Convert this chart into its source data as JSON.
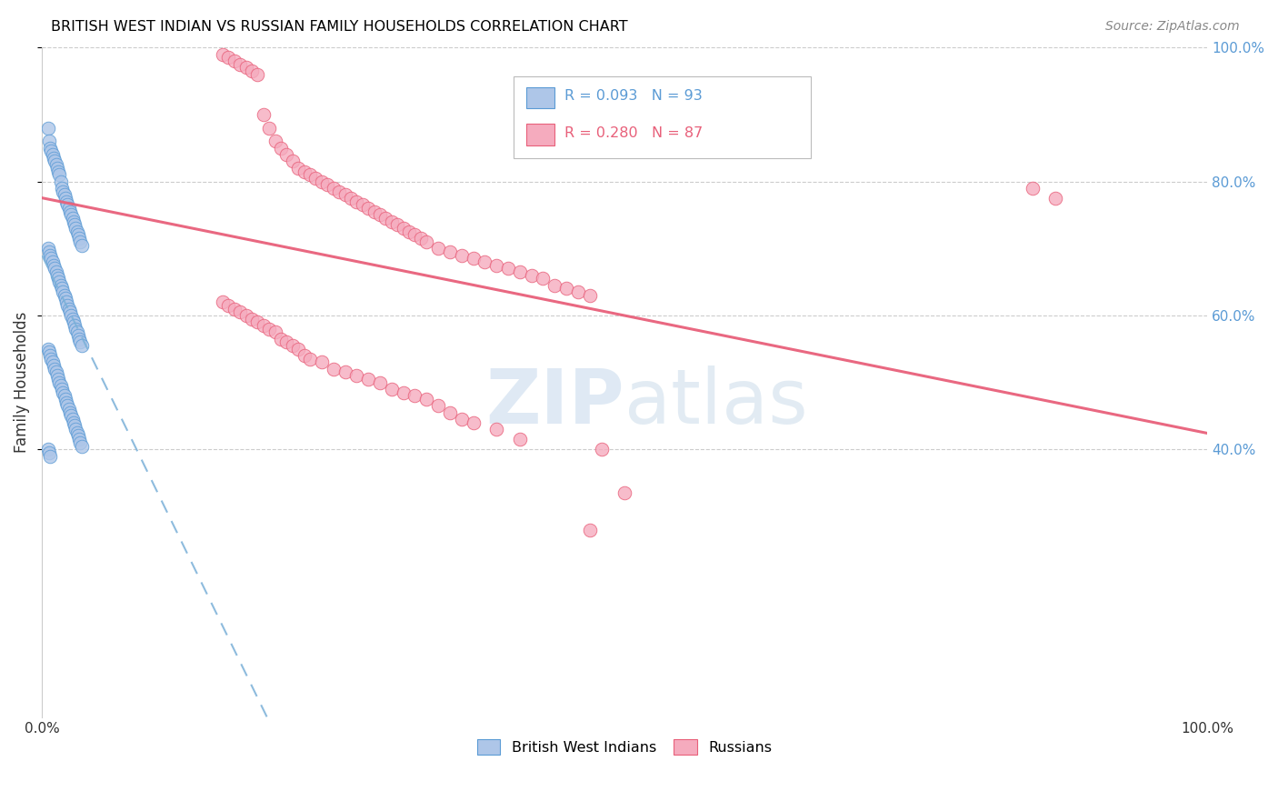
{
  "title": "BRITISH WEST INDIAN VS RUSSIAN FAMILY HOUSEHOLDS CORRELATION CHART",
  "source": "Source: ZipAtlas.com",
  "ylabel": "Family Households",
  "blue_R": 0.093,
  "blue_N": 93,
  "pink_R": 0.28,
  "pink_N": 87,
  "blue_color": "#aec6e8",
  "pink_color": "#f5abbe",
  "blue_edge_color": "#5b9bd5",
  "pink_edge_color": "#e8607a",
  "blue_line_color": "#7ab0d8",
  "pink_line_color": "#e8607a",
  "legend_label_blue": "British West Indians",
  "legend_label_pink": "Russians",
  "grid_color": "#cccccc",
  "right_tick_color": "#5b9bd5",
  "blue_x": [
    0.005,
    0.006,
    0.007,
    0.008,
    0.009,
    0.01,
    0.011,
    0.012,
    0.013,
    0.014,
    0.015,
    0.016,
    0.017,
    0.018,
    0.019,
    0.02,
    0.021,
    0.022,
    0.023,
    0.024,
    0.025,
    0.026,
    0.027,
    0.028,
    0.029,
    0.03,
    0.031,
    0.032,
    0.033,
    0.034,
    0.005,
    0.006,
    0.007,
    0.008,
    0.009,
    0.01,
    0.011,
    0.012,
    0.013,
    0.014,
    0.015,
    0.016,
    0.017,
    0.018,
    0.019,
    0.02,
    0.021,
    0.022,
    0.023,
    0.024,
    0.025,
    0.026,
    0.027,
    0.028,
    0.029,
    0.03,
    0.031,
    0.032,
    0.033,
    0.034,
    0.005,
    0.006,
    0.007,
    0.008,
    0.009,
    0.01,
    0.011,
    0.012,
    0.013,
    0.014,
    0.015,
    0.016,
    0.017,
    0.018,
    0.019,
    0.02,
    0.021,
    0.022,
    0.023,
    0.024,
    0.025,
    0.026,
    0.027,
    0.028,
    0.029,
    0.03,
    0.031,
    0.032,
    0.033,
    0.034,
    0.005,
    0.006,
    0.007
  ],
  "blue_y": [
    0.88,
    0.86,
    0.85,
    0.845,
    0.84,
    0.835,
    0.83,
    0.825,
    0.82,
    0.815,
    0.81,
    0.8,
    0.79,
    0.785,
    0.78,
    0.775,
    0.77,
    0.765,
    0.76,
    0.755,
    0.75,
    0.745,
    0.74,
    0.735,
    0.73,
    0.725,
    0.72,
    0.715,
    0.71,
    0.705,
    0.7,
    0.695,
    0.69,
    0.685,
    0.68,
    0.675,
    0.67,
    0.665,
    0.66,
    0.655,
    0.65,
    0.645,
    0.64,
    0.635,
    0.63,
    0.625,
    0.62,
    0.615,
    0.61,
    0.605,
    0.6,
    0.595,
    0.59,
    0.585,
    0.58,
    0.575,
    0.57,
    0.565,
    0.56,
    0.555,
    0.55,
    0.545,
    0.54,
    0.535,
    0.53,
    0.525,
    0.52,
    0.515,
    0.51,
    0.505,
    0.5,
    0.495,
    0.49,
    0.485,
    0.48,
    0.475,
    0.47,
    0.465,
    0.46,
    0.455,
    0.45,
    0.445,
    0.44,
    0.435,
    0.43,
    0.425,
    0.42,
    0.415,
    0.41,
    0.405,
    0.4,
    0.395,
    0.39
  ],
  "pink_x": [
    0.155,
    0.16,
    0.165,
    0.17,
    0.175,
    0.18,
    0.185,
    0.19,
    0.195,
    0.2,
    0.205,
    0.21,
    0.215,
    0.22,
    0.225,
    0.23,
    0.235,
    0.24,
    0.245,
    0.25,
    0.255,
    0.26,
    0.265,
    0.27,
    0.275,
    0.28,
    0.285,
    0.29,
    0.295,
    0.3,
    0.305,
    0.31,
    0.315,
    0.32,
    0.325,
    0.33,
    0.34,
    0.35,
    0.36,
    0.37,
    0.38,
    0.39,
    0.4,
    0.41,
    0.42,
    0.43,
    0.44,
    0.45,
    0.46,
    0.47,
    0.155,
    0.16,
    0.165,
    0.17,
    0.175,
    0.18,
    0.185,
    0.19,
    0.195,
    0.2,
    0.205,
    0.21,
    0.215,
    0.22,
    0.225,
    0.23,
    0.24,
    0.25,
    0.26,
    0.27,
    0.28,
    0.29,
    0.3,
    0.31,
    0.32,
    0.33,
    0.34,
    0.35,
    0.36,
    0.37,
    0.39,
    0.41,
    0.85,
    0.87,
    0.48,
    0.5,
    0.47
  ],
  "pink_y": [
    0.99,
    0.985,
    0.98,
    0.975,
    0.97,
    0.965,
    0.96,
    0.9,
    0.88,
    0.86,
    0.85,
    0.84,
    0.83,
    0.82,
    0.815,
    0.81,
    0.805,
    0.8,
    0.795,
    0.79,
    0.785,
    0.78,
    0.775,
    0.77,
    0.765,
    0.76,
    0.755,
    0.75,
    0.745,
    0.74,
    0.735,
    0.73,
    0.725,
    0.72,
    0.715,
    0.71,
    0.7,
    0.695,
    0.69,
    0.685,
    0.68,
    0.675,
    0.67,
    0.665,
    0.66,
    0.655,
    0.645,
    0.64,
    0.635,
    0.63,
    0.62,
    0.615,
    0.61,
    0.605,
    0.6,
    0.595,
    0.59,
    0.585,
    0.58,
    0.575,
    0.565,
    0.56,
    0.555,
    0.55,
    0.54,
    0.535,
    0.53,
    0.52,
    0.515,
    0.51,
    0.505,
    0.5,
    0.49,
    0.485,
    0.48,
    0.475,
    0.465,
    0.455,
    0.445,
    0.44,
    0.43,
    0.415,
    0.79,
    0.775,
    0.4,
    0.335,
    0.28
  ]
}
